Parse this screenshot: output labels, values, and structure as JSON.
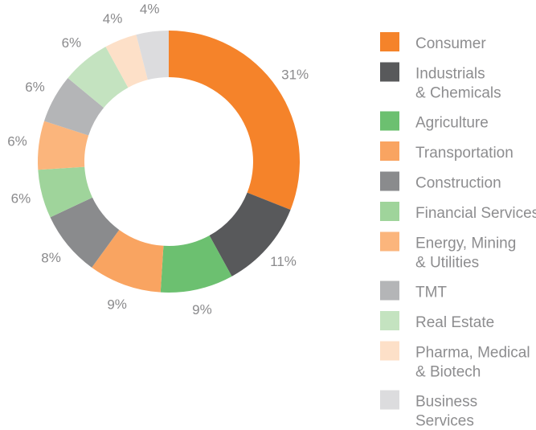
{
  "chart_data": {
    "type": "donut",
    "categories": [
      "Consumer",
      "Industrials\n& Chemicals",
      "Agriculture",
      "Transportation",
      "Construction",
      "Financial Services",
      "Energy, Mining\n& Utilities",
      "TMT",
      "Real Estate",
      "Pharma, Medical\n& Biotech",
      "Business\nServices"
    ],
    "values": [
      31,
      11,
      9,
      9,
      8,
      6,
      6,
      6,
      6,
      4,
      4
    ],
    "colors": [
      "#f5832a",
      "#58595b",
      "#6cc070",
      "#f9a461",
      "#8a8b8d",
      "#9fd49b",
      "#fbb57c",
      "#b4b5b7",
      "#c4e3c0",
      "#fde0c8",
      "#dcdcde"
    ],
    "legend": "right"
  }
}
